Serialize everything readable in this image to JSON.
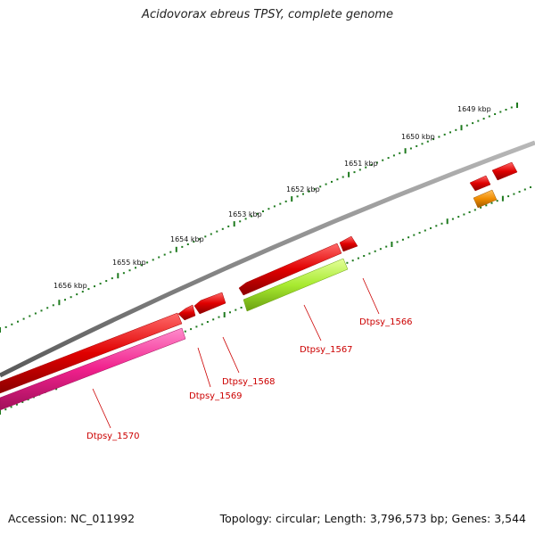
{
  "title": "Acidovorax ebreus TPSY, complete genome",
  "accession": "Accession: NC_011992",
  "topology": "Topology: circular; Length: 3,796,573 bp; Genes: 3,544",
  "colors": {
    "backbone": "#8a8a8a",
    "tick": "#1e7a1e",
    "cds_red": "#e00000",
    "cds_pink": "#f0208c",
    "cds_lime": "#a8ea30",
    "cds_orange": "#f08c00",
    "label": "#cc0000"
  },
  "kbp_labels": [
    "1649 kbp",
    "1650 kbp",
    "1651 kbp",
    "1652 kbp",
    "1653 kbp",
    "1654 kbp",
    "1655 kbp",
    "1656 kbp"
  ],
  "gene_labels": [
    "Dtpsy_1566",
    "Dtpsy_1567",
    "Dtpsy_1568",
    "Dtpsy_1569",
    "Dtpsy_1570"
  ]
}
